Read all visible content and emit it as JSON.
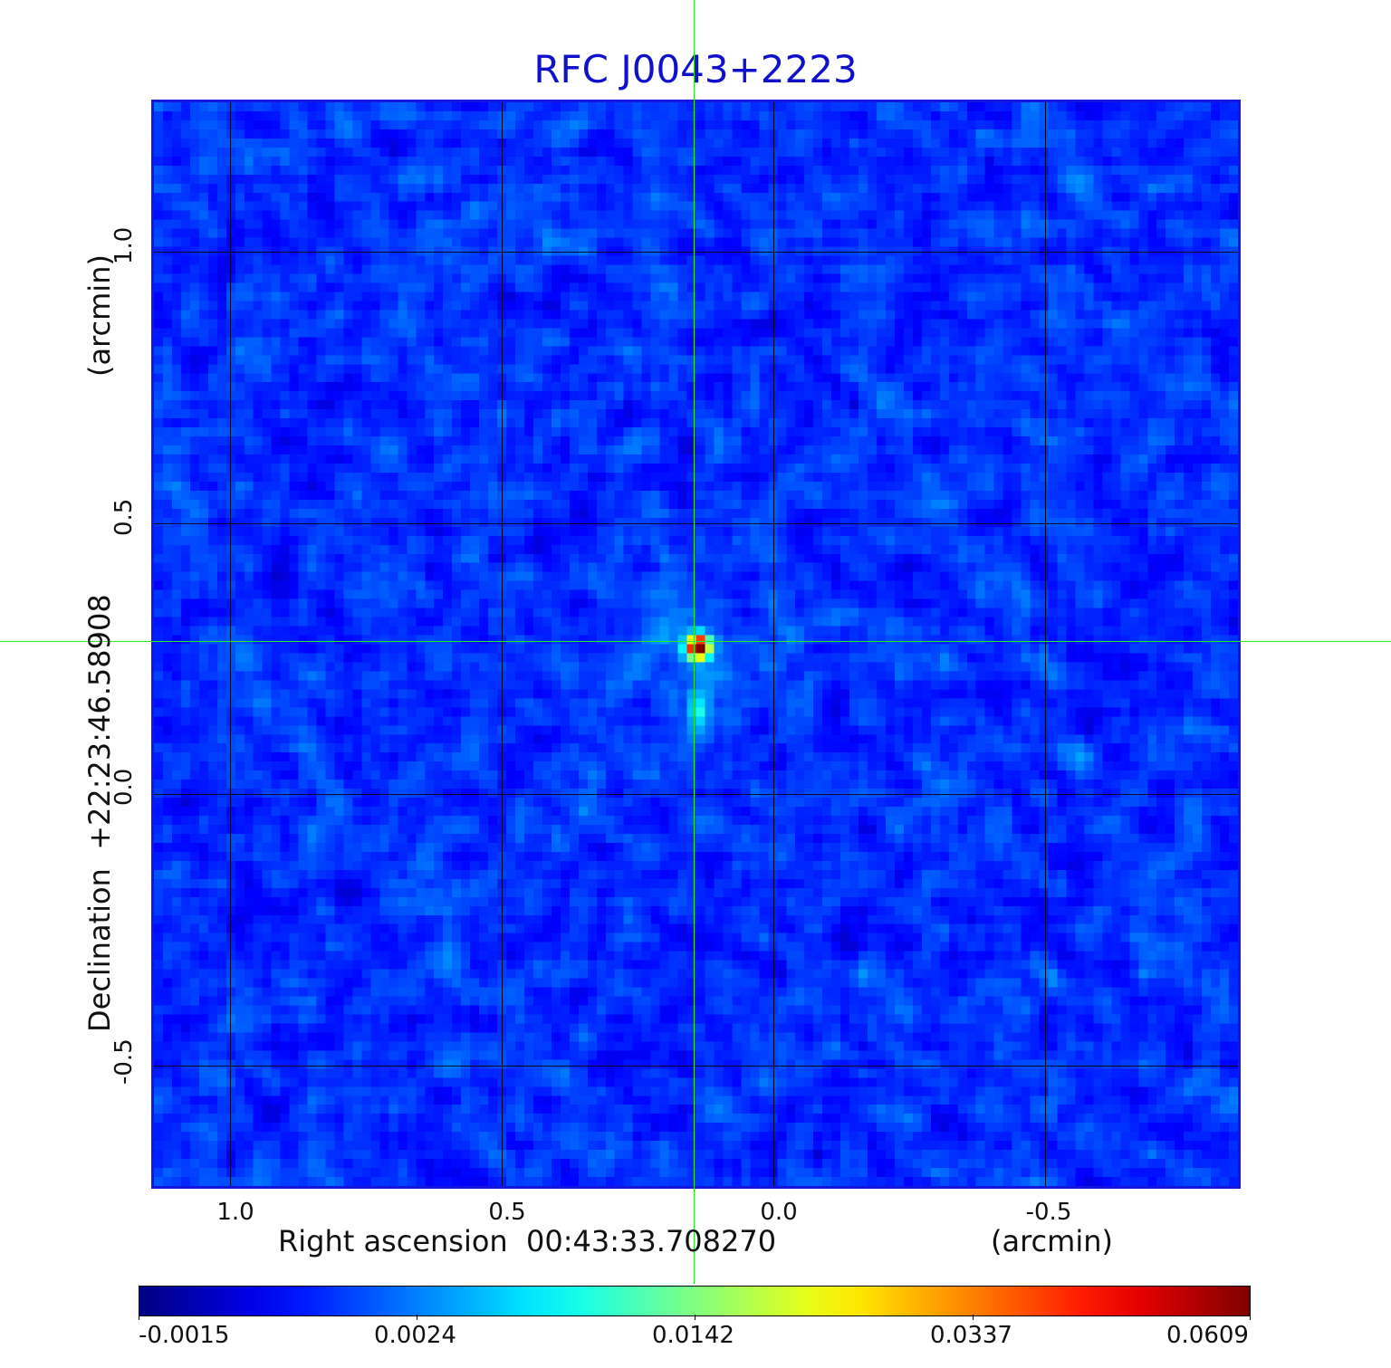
{
  "title": "RFC J0043+2223",
  "x_axis": {
    "label": "Right ascension  00:43:33.708270",
    "unit": "(arcmin)",
    "ticks": [
      "1.0",
      "0.5",
      "0.0",
      "-0.5"
    ]
  },
  "y_axis": {
    "label": "Declination  +22:23:46.58908",
    "unit": "(arcmin)",
    "ticks": [
      "1.0",
      "0.5",
      "0.0",
      "-0.5"
    ]
  },
  "colorbar": {
    "ticks": [
      "-0.0015",
      "0.0024",
      "0.0142",
      "0.0337",
      "0.0609"
    ],
    "colormap": "jet"
  },
  "colors": {
    "title": "#1111cc",
    "frame": "#1515e0",
    "crosshair": "#22ee22"
  }
}
